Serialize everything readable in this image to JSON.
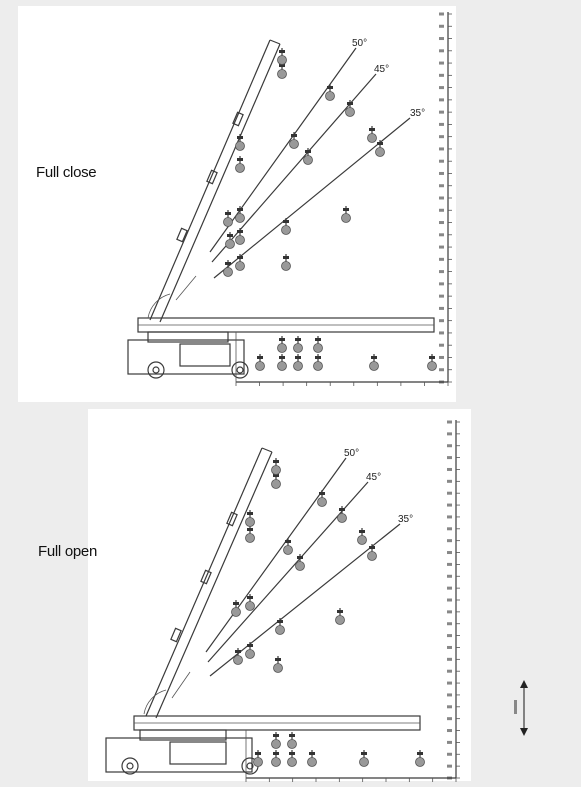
{
  "labels": {
    "top": "Full close",
    "bottom": "Full open"
  },
  "diagrams": [
    {
      "name": "full-close",
      "angles": [
        "50°",
        "45°",
        "35°"
      ]
    },
    {
      "name": "full-open",
      "angles": [
        "50°",
        "45°",
        "35°"
      ]
    }
  ],
  "colors": {
    "background": "#ededed",
    "panel": "#ffffff",
    "ink": "#3a3a3a",
    "weight_fill": "#999999"
  }
}
